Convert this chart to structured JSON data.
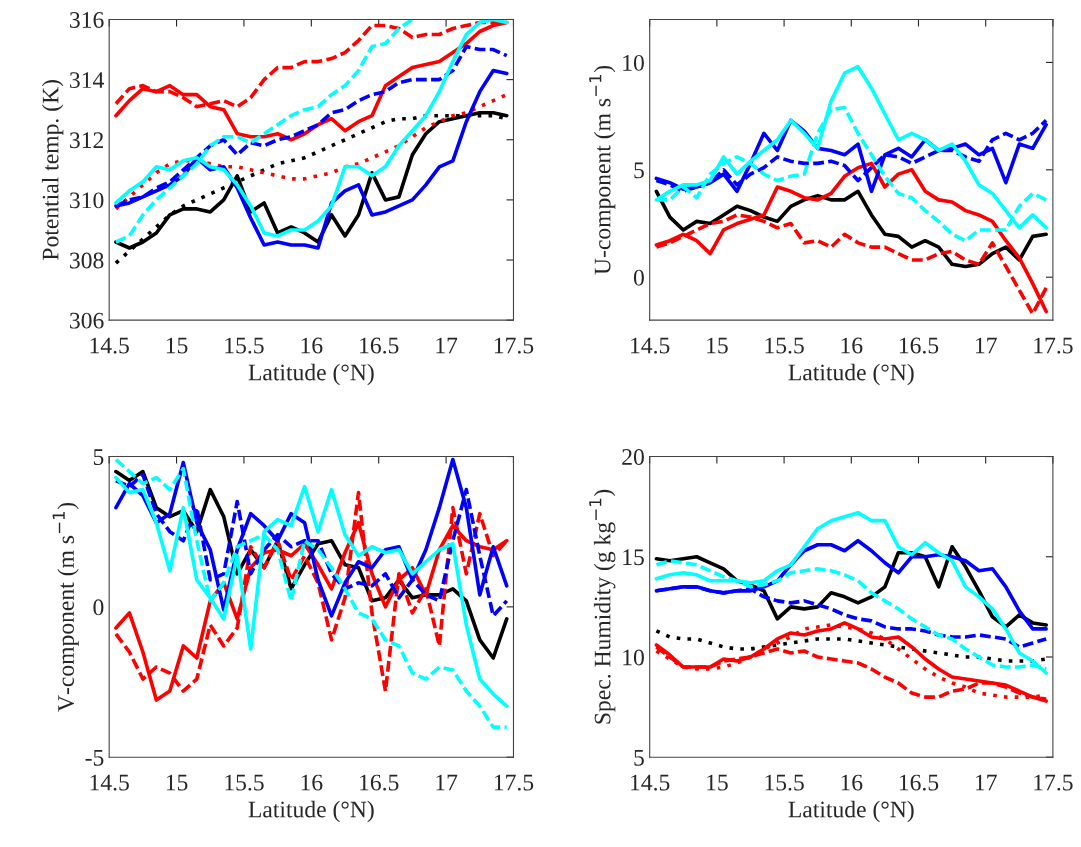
{
  "chart_data": [
    {
      "type": "line",
      "xlabel": "Latitude (°N)",
      "ylabel": "Potential temp. (K)",
      "xlim": [
        14.5,
        17.5
      ],
      "xticks": [
        14.5,
        15,
        15.5,
        16,
        16.5,
        17,
        17.5
      ],
      "ylim": [
        306,
        316
      ],
      "yticks": [
        306,
        308,
        310,
        312,
        314,
        316
      ],
      "x": [
        14.55,
        14.65,
        14.75,
        14.85,
        14.95,
        15.05,
        15.15,
        15.25,
        15.35,
        15.45,
        15.55,
        15.65,
        15.75,
        15.85,
        15.95,
        16.05,
        16.15,
        16.25,
        16.35,
        16.45,
        16.55,
        16.65,
        16.75,
        16.85,
        16.95,
        17.05,
        17.15,
        17.25,
        17.35,
        17.45
      ],
      "series": [
        {
          "color": "#000000",
          "line_style": "solid",
          "values": [
            308.6,
            308.4,
            308.6,
            308.9,
            309.5,
            309.7,
            309.7,
            309.6,
            310.0,
            310.8,
            309.6,
            309.9,
            308.9,
            309.1,
            308.9,
            308.6,
            309.5,
            308.8,
            309.5,
            310.9,
            310.0,
            310.1,
            311.5,
            312.2,
            312.6,
            312.7,
            312.8,
            312.9,
            312.9,
            312.8
          ]
        },
        {
          "color": "#000000",
          "line_style": "dotted",
          "values": [
            307.9,
            308.3,
            308.7,
            309.1,
            309.5,
            309.8,
            310.0,
            310.2,
            310.4,
            310.6,
            310.8,
            311.0,
            311.2,
            311.3,
            311.4,
            311.6,
            311.8,
            312.0,
            312.2,
            312.4,
            312.6,
            312.7,
            312.7,
            312.8,
            312.8,
            312.8,
            312.8,
            312.8,
            312.8,
            312.7
          ]
        },
        {
          "color": "#ff0000",
          "line_style": "solid",
          "values": [
            312.8,
            313.3,
            313.7,
            313.6,
            313.8,
            313.5,
            313.5,
            313.1,
            313.0,
            312.2,
            312.1,
            312.1,
            312.2,
            312.0,
            312.2,
            312.5,
            312.7,
            312.3,
            312.6,
            312.8,
            313.8,
            314.1,
            314.4,
            314.5,
            314.6,
            314.9,
            315.2,
            315.6,
            315.8,
            315.9
          ]
        },
        {
          "color": "#ff0000",
          "line_style": "dashed",
          "values": [
            313.2,
            313.7,
            313.8,
            313.6,
            313.6,
            313.4,
            313.1,
            313.2,
            313.3,
            313.1,
            313.4,
            314.0,
            314.4,
            314.4,
            314.6,
            314.6,
            314.7,
            314.9,
            315.3,
            315.8,
            315.8,
            315.7,
            315.4,
            315.5,
            315.5,
            315.7,
            315.8,
            315.9,
            315.9,
            315.9
          ]
        },
        {
          "color": "#ff0000",
          "line_style": "dotted",
          "values": [
            309.7,
            310.1,
            310.5,
            310.9,
            311.2,
            311.3,
            311.3,
            311.2,
            311.1,
            311.1,
            311.0,
            310.9,
            310.8,
            310.7,
            310.7,
            310.8,
            310.9,
            311.1,
            311.2,
            311.4,
            311.6,
            311.8,
            312.1,
            312.4,
            312.6,
            312.8,
            312.9,
            313.1,
            313.3,
            313.5
          ]
        },
        {
          "color": "#0000ff",
          "line_style": "solid",
          "values": [
            309.8,
            309.9,
            310.1,
            310.3,
            310.5,
            310.8,
            311.4,
            311.0,
            311.1,
            310.4,
            309.4,
            308.5,
            308.6,
            308.5,
            308.5,
            308.4,
            309.9,
            310.3,
            310.5,
            309.5,
            309.6,
            309.8,
            310.0,
            310.5,
            311.1,
            311.3,
            312.6,
            313.6,
            314.3,
            314.2
          ]
        },
        {
          "color": "#0000ff",
          "line_style": "dashed",
          "values": [
            309.8,
            310.0,
            310.1,
            310.4,
            310.6,
            311.0,
            311.4,
            311.8,
            312.0,
            311.5,
            311.9,
            311.8,
            312.0,
            312.1,
            312.3,
            312.5,
            312.9,
            313.0,
            313.3,
            313.5,
            313.6,
            313.9,
            314.0,
            314.0,
            314.0,
            314.3,
            315.1,
            315.0,
            315.0,
            314.8
          ]
        },
        {
          "color": "#00ffff",
          "line_style": "solid",
          "values": [
            309.9,
            310.3,
            310.6,
            311.1,
            311.0,
            311.3,
            311.4,
            311.1,
            311.0,
            310.5,
            309.8,
            308.9,
            308.8,
            309.0,
            309.0,
            309.3,
            309.8,
            311.1,
            311.1,
            310.8,
            311.1,
            311.8,
            312.3,
            312.8,
            313.6,
            314.6,
            315.5,
            315.9,
            316.0,
            315.9
          ]
        },
        {
          "color": "#00ffff",
          "line_style": "dashed",
          "values": [
            308.6,
            308.8,
            309.5,
            310.0,
            310.4,
            310.8,
            311.2,
            311.8,
            312.1,
            312.1,
            311.9,
            312.2,
            312.5,
            312.8,
            313.0,
            313.1,
            313.5,
            313.8,
            314.3,
            315.1,
            315.2,
            315.7,
            316.0,
            null,
            null,
            null,
            null,
            null,
            null,
            null
          ]
        }
      ]
    },
    {
      "type": "line",
      "xlabel": "Latitude (°N)",
      "ylabel": "U-component (m s$^{−1}$)",
      "xlim": [
        14.5,
        17.5
      ],
      "xticks": [
        14.5,
        15,
        15.5,
        16,
        16.5,
        17,
        17.5
      ],
      "ylim": [
        -2,
        12
      ],
      "yticks": [
        0,
        5,
        10
      ],
      "x": [
        14.55,
        14.65,
        14.75,
        14.85,
        14.95,
        15.05,
        15.15,
        15.25,
        15.35,
        15.45,
        15.55,
        15.65,
        15.75,
        15.85,
        15.95,
        16.05,
        16.15,
        16.25,
        16.35,
        16.45,
        16.55,
        16.65,
        16.75,
        16.85,
        16.95,
        17.05,
        17.15,
        17.25,
        17.35,
        17.45
      ],
      "series": [
        {
          "color": "#000000",
          "line_style": "solid",
          "values": [
            4.0,
            2.8,
            2.2,
            2.6,
            2.5,
            2.9,
            3.3,
            3.1,
            2.8,
            2.6,
            3.3,
            3.6,
            3.8,
            3.6,
            3.6,
            4.0,
            2.9,
            2.0,
            1.9,
            1.4,
            1.7,
            1.4,
            0.6,
            0.5,
            0.6,
            1.1,
            1.4,
            0.8,
            1.9,
            2.0
          ]
        },
        {
          "color": "#ff0000",
          "line_style": "solid",
          "values": [
            1.5,
            1.7,
            2.0,
            1.7,
            1.1,
            2.2,
            2.5,
            2.7,
            2.9,
            4.2,
            4.0,
            3.7,
            3.6,
            3.9,
            4.7,
            5.1,
            5.3,
            4.2,
            4.8,
            5.0,
            4.0,
            3.6,
            3.5,
            3.1,
            2.9,
            2.6,
            1.7,
            0.9,
            -0.3,
            -1.6
          ]
        },
        {
          "color": "#ff0000",
          "line_style": "dashed",
          "values": [
            1.4,
            1.6,
            1.9,
            2.2,
            2.5,
            2.6,
            2.9,
            2.8,
            2.6,
            2.3,
            2.5,
            1.6,
            1.7,
            1.4,
            2.0,
            1.6,
            1.4,
            1.4,
            1.1,
            0.8,
            0.8,
            1.1,
            1.2,
            0.8,
            0.6,
            1.6,
            0.5,
            -0.6,
            -1.7,
            -0.5
          ]
        },
        {
          "color": "#0000ff",
          "line_style": "solid",
          "values": [
            4.6,
            4.4,
            4.1,
            4.2,
            4.4,
            4.8,
            4.0,
            5.3,
            6.7,
            5.9,
            7.3,
            6.8,
            6.0,
            5.9,
            5.7,
            6.2,
            4.0,
            5.7,
            6.0,
            5.6,
            6.4,
            5.9,
            6.0,
            6.2,
            5.7,
            6.0,
            4.4,
            6.2,
            6.0,
            7.1
          ]
        },
        {
          "color": "#0000ff",
          "line_style": "dashed",
          "values": [
            4.5,
            4.3,
            4.0,
            4.2,
            4.4,
            5.0,
            4.3,
            4.8,
            5.1,
            5.6,
            5.4,
            5.3,
            5.3,
            5.4,
            5.2,
            4.5,
            5.1,
            5.7,
            5.6,
            5.3,
            5.6,
            5.9,
            5.9,
            5.6,
            5.4,
            6.4,
            6.7,
            6.4,
            6.7,
            7.3
          ]
        },
        {
          "color": "#00ffff",
          "line_style": "solid",
          "values": [
            3.6,
            4.0,
            4.3,
            4.3,
            4.5,
            5.6,
            4.8,
            5.4,
            5.9,
            6.4,
            7.3,
            6.7,
            6.0,
            8.2,
            9.5,
            9.8,
            8.8,
            7.6,
            6.4,
            6.7,
            6.4,
            5.9,
            6.2,
            5.4,
            4.3,
            3.9,
            3.1,
            2.3,
            2.9,
            2.3
          ]
        },
        {
          "color": "#00ffff",
          "line_style": "dashed",
          "values": [
            3.6,
            3.6,
            4.2,
            3.7,
            4.8,
            5.3,
            5.6,
            5.3,
            4.8,
            4.5,
            4.7,
            4.8,
            6.7,
            7.8,
            7.9,
            6.7,
            5.7,
            4.7,
            3.9,
            3.7,
            3.1,
            2.6,
            2.0,
            1.7,
            2.2,
            2.2,
            2.2,
            3.3,
            3.9,
            3.6
          ]
        }
      ]
    },
    {
      "type": "line",
      "xlabel": "Latitude (°N)",
      "ylabel": "V-component (m s$^{−1}$)",
      "xlim": [
        14.5,
        17.5
      ],
      "xticks": [
        14.5,
        15,
        15.5,
        16,
        16.5,
        17,
        17.5
      ],
      "ylim": [
        -5,
        5
      ],
      "yticks": [
        -5,
        0,
        5
      ],
      "x": [
        14.55,
        14.65,
        14.75,
        14.85,
        14.95,
        15.05,
        15.15,
        15.25,
        15.35,
        15.45,
        15.55,
        15.65,
        15.75,
        15.85,
        15.95,
        16.05,
        16.15,
        16.25,
        16.35,
        16.45,
        16.55,
        16.65,
        16.75,
        16.85,
        16.95,
        17.05,
        17.15,
        17.25,
        17.35,
        17.45
      ],
      "series": [
        {
          "color": "#000000",
          "line_style": "solid",
          "values": [
            4.5,
            4.2,
            4.5,
            3.3,
            3.0,
            3.2,
            2.5,
            3.9,
            3.0,
            1.1,
            1.9,
            1.3,
            2.2,
            0.6,
            1.4,
            2.1,
            2.2,
            1.4,
            1.3,
            0.2,
            0.3,
            0.9,
            0.3,
            0.4,
            0.4,
            0.6,
            0.2,
            -1.1,
            -1.7,
            -0.4
          ]
        },
        {
          "color": "#ff0000",
          "line_style": "solid",
          "values": [
            -0.7,
            -0.2,
            -1.5,
            -3.1,
            -2.8,
            -1.3,
            -1.7,
            0.2,
            0.8,
            -0.4,
            1.3,
            1.8,
            1.9,
            1.7,
            2.1,
            1.4,
            0.6,
            1.8,
            2.8,
            1.1,
            0.0,
            0.9,
            1.3,
            0.4,
            1.9,
            2.7,
            2.2,
            2.0,
            1.9,
            2.2
          ]
        },
        {
          "color": "#ff0000",
          "line_style": "dashed",
          "values": [
            -0.9,
            -1.5,
            -2.4,
            -2.0,
            -2.2,
            -2.8,
            -2.4,
            -0.6,
            -1.3,
            -0.7,
            2.0,
            1.3,
            2.2,
            0.9,
            1.7,
            0.8,
            -1.1,
            0.3,
            3.8,
            -0.2,
            -2.8,
            1.1,
            -0.2,
            0.6,
            -1.3,
            3.3,
            1.1,
            3.1,
            1.7,
            2.2
          ]
        },
        {
          "color": "#0000ff",
          "line_style": "solid",
          "values": [
            3.3,
            4.1,
            3.7,
            2.8,
            3.1,
            4.8,
            2.8,
            1.9,
            -0.1,
            1.9,
            3.1,
            2.7,
            2.2,
            3.1,
            2.8,
            0.9,
            -0.3,
            0.8,
            1.5,
            1.3,
            1.9,
            2.0,
            0.9,
            1.9,
            3.3,
            4.9,
            3.3,
            0.4,
            2.0,
            0.7
          ]
        },
        {
          "color": "#0000ff",
          "line_style": "dashed",
          "values": [
            4.2,
            4.0,
            4.4,
            3.1,
            2.5,
            2.2,
            3.3,
            0.9,
            1.1,
            3.5,
            1.1,
            1.9,
            2.4,
            2.0,
            2.2,
            2.2,
            1.1,
            0.6,
            0.8,
            0.7,
            1.1,
            0.3,
            0.9,
            0.4,
            0.2,
            2.2,
            3.9,
            1.7,
            -0.3,
            0.2
          ]
        },
        {
          "color": "#00ffff",
          "line_style": "solid",
          "values": [
            4.3,
            3.8,
            3.9,
            2.8,
            1.2,
            3.3,
            0.9,
            0.3,
            -0.4,
            1.7,
            -1.4,
            2.5,
            2.9,
            2.7,
            4.0,
            2.5,
            3.9,
            2.4,
            1.7,
            2.0,
            1.8,
            1.9,
            1.1,
            1.5,
            1.9,
            2.1,
            -0.6,
            -2.4,
            -2.9,
            -3.3
          ]
        },
        {
          "color": "#00ffff",
          "line_style": "dashed",
          "values": [
            4.9,
            4.5,
            4.1,
            4.3,
            3.9,
            4.6,
            2.2,
            0.2,
            0.8,
            2.0,
            2.2,
            2.4,
            1.9,
            0.2,
            2.2,
            1.9,
            1.3,
            0.6,
            -0.2,
            -0.4,
            -1.1,
            -1.3,
            -2.2,
            -2.4,
            -2.0,
            -2.1,
            -2.8,
            -3.3,
            -4.0,
            -4.0
          ]
        }
      ]
    },
    {
      "type": "line",
      "xlabel": "Latitude (°N)",
      "ylabel": "Spec. Humidity (g kg$^{−1}$)",
      "xlim": [
        14.5,
        17.5
      ],
      "xticks": [
        14.5,
        15,
        15.5,
        16,
        16.5,
        17,
        17.5
      ],
      "ylim": [
        5,
        20
      ],
      "yticks": [
        5,
        10,
        15,
        20
      ],
      "x": [
        14.55,
        14.65,
        14.75,
        14.85,
        14.95,
        15.05,
        15.15,
        15.25,
        15.35,
        15.45,
        15.55,
        15.65,
        15.75,
        15.85,
        15.95,
        16.05,
        16.15,
        16.25,
        16.35,
        16.45,
        16.55,
        16.65,
        16.75,
        16.85,
        16.95,
        17.05,
        17.15,
        17.25,
        17.35,
        17.45
      ],
      "series": [
        {
          "color": "#000000",
          "line_style": "solid",
          "values": [
            14.9,
            14.8,
            14.9,
            15.0,
            14.7,
            14.4,
            13.8,
            13.6,
            13.3,
            11.9,
            12.5,
            12.4,
            12.5,
            13.2,
            13.0,
            12.7,
            13.0,
            13.5,
            15.2,
            15.2,
            15.0,
            13.5,
            15.5,
            14.5,
            13.3,
            12.0,
            11.5,
            12.1,
            11.7,
            11.6
          ]
        },
        {
          "color": "#000000",
          "line_style": "dotted",
          "values": [
            11.3,
            11.0,
            10.9,
            10.9,
            10.7,
            10.5,
            10.4,
            10.4,
            10.5,
            10.6,
            10.7,
            10.8,
            10.9,
            10.9,
            10.9,
            10.8,
            10.7,
            10.6,
            10.5,
            10.4,
            10.3,
            10.2,
            10.1,
            10.0,
            10.0,
            9.9,
            9.8,
            9.8,
            9.8,
            9.9
          ]
        },
        {
          "color": "#ff0000",
          "line_style": "solid",
          "values": [
            10.6,
            10.1,
            9.5,
            9.5,
            9.5,
            9.9,
            9.8,
            10.0,
            10.4,
            10.9,
            11.2,
            11.1,
            11.3,
            11.4,
            11.7,
            11.4,
            11.0,
            10.9,
            11.0,
            10.5,
            9.9,
            9.4,
            9.0,
            8.9,
            8.8,
            8.7,
            8.6,
            8.3,
            8.0,
            7.8
          ]
        },
        {
          "color": "#ff0000",
          "line_style": "dashed",
          "values": [
            10.5,
            10.0,
            9.5,
            9.5,
            9.5,
            9.8,
            9.9,
            10.0,
            10.2,
            10.4,
            10.2,
            10.3,
            10.0,
            9.9,
            9.8,
            9.7,
            9.4,
            9.0,
            8.7,
            8.2,
            8.0,
            8.0,
            8.3,
            8.4,
            8.7,
            8.7,
            8.5,
            8.2,
            8.0,
            7.9
          ]
        },
        {
          "color": "#ff0000",
          "line_style": "dotted",
          "values": [
            10.3,
            9.9,
            9.5,
            9.4,
            9.4,
            9.5,
            9.7,
            10.0,
            10.4,
            10.7,
            11.0,
            11.4,
            11.5,
            11.6,
            11.5,
            11.4,
            11.2,
            10.9,
            10.4,
            9.9,
            9.4,
            9.0,
            8.7,
            8.5,
            8.2,
            8.1,
            8.0,
            8.0,
            8.0,
            8.1
          ]
        },
        {
          "color": "#0000ff",
          "line_style": "solid",
          "values": [
            13.3,
            13.4,
            13.5,
            13.5,
            13.3,
            13.2,
            13.3,
            13.3,
            13.5,
            13.8,
            14.6,
            15.3,
            15.6,
            15.6,
            15.3,
            15.8,
            15.3,
            14.7,
            14.2,
            15.0,
            15.0,
            15.1,
            15.0,
            14.8,
            14.3,
            14.4,
            13.5,
            12.3,
            11.4,
            11.4
          ]
        },
        {
          "color": "#0000ff",
          "line_style": "dashed",
          "values": [
            13.3,
            13.4,
            13.5,
            13.5,
            13.3,
            13.2,
            13.3,
            13.4,
            13.0,
            12.8,
            12.7,
            12.8,
            12.6,
            12.4,
            12.1,
            11.9,
            11.8,
            11.5,
            11.4,
            11.4,
            11.3,
            11.1,
            11.0,
            11.0,
            11.1,
            11.0,
            10.9,
            10.5,
            10.7,
            10.9
          ]
        },
        {
          "color": "#00ffff",
          "line_style": "solid",
          "values": [
            13.9,
            14.1,
            14.2,
            14.1,
            13.8,
            13.8,
            13.8,
            13.7,
            13.8,
            14.3,
            14.6,
            15.5,
            16.4,
            16.8,
            17.0,
            17.2,
            16.8,
            16.8,
            15.5,
            15.1,
            15.7,
            15.2,
            14.8,
            13.5,
            13.0,
            12.4,
            11.4,
            10.2,
            9.8,
            9.2
          ]
        },
        {
          "color": "#00ffff",
          "line_style": "dashed",
          "values": [
            14.6,
            14.8,
            14.7,
            14.6,
            14.3,
            14.0,
            13.8,
            13.5,
            13.6,
            13.8,
            14.2,
            14.3,
            14.4,
            14.3,
            14.1,
            13.8,
            13.2,
            12.8,
            12.4,
            11.9,
            11.5,
            11.1,
            10.9,
            10.4,
            10.0,
            9.6,
            9.5,
            9.5,
            9.6,
            9.4
          ]
        }
      ]
    }
  ]
}
